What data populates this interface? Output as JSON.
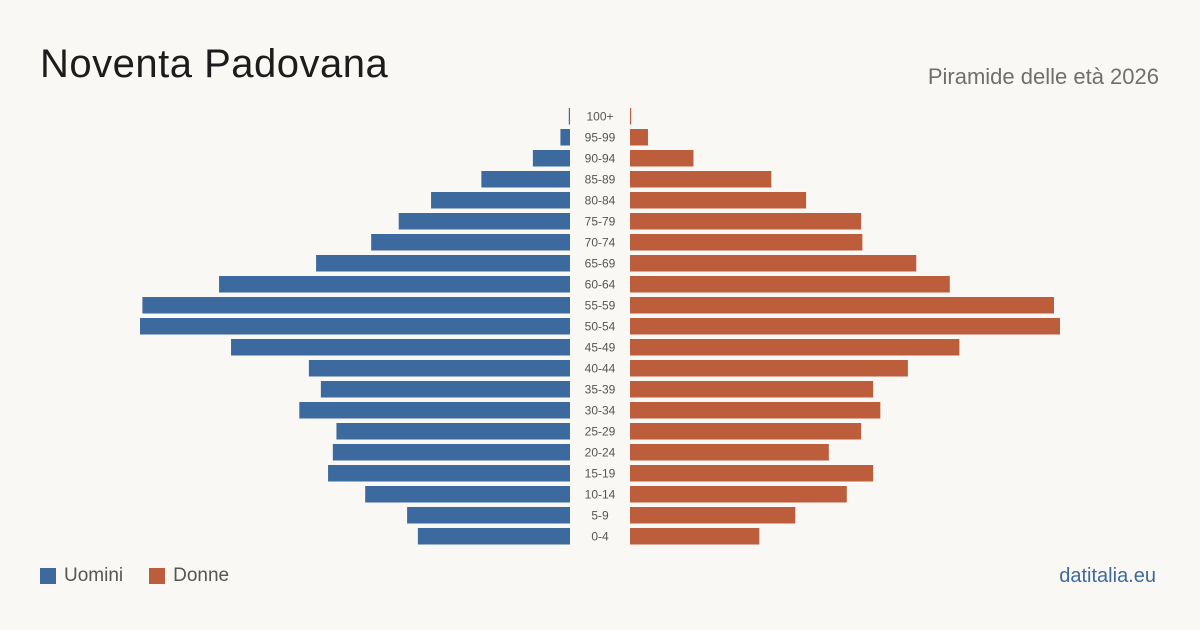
{
  "header": {
    "title": "Noventa Padovana",
    "subtitle": "Piramide delle età 2026"
  },
  "footer": {
    "source": "datitalia.eu"
  },
  "colors": {
    "male": "#3d6a9e",
    "female": "#bc5e3c"
  },
  "chart_data": {
    "type": "bar",
    "orientation": "horizontal-pyramid",
    "categories": [
      "100+",
      "95-99",
      "90-94",
      "85-89",
      "80-84",
      "75-79",
      "70-74",
      "65-69",
      "60-64",
      "55-59",
      "50-54",
      "45-49",
      "40-44",
      "35-39",
      "30-34",
      "25-29",
      "20-24",
      "15-19",
      "10-14",
      "5-9",
      "0-4"
    ],
    "series": [
      {
        "name": "Uomini",
        "color": "#3d6a9e",
        "values": [
          1,
          8,
          31,
          74,
          116,
          143,
          166,
          212,
          293,
          357,
          359,
          283,
          218,
          208,
          226,
          195,
          198,
          202,
          171,
          136,
          127
        ]
      },
      {
        "name": "Donne",
        "color": "#bc5e3c",
        "values": [
          1,
          15,
          53,
          118,
          147,
          193,
          194,
          239,
          267,
          354,
          359,
          275,
          232,
          203,
          209,
          193,
          166,
          203,
          181,
          138,
          108
        ]
      }
    ],
    "legend": "bottom-left",
    "grid": false
  }
}
